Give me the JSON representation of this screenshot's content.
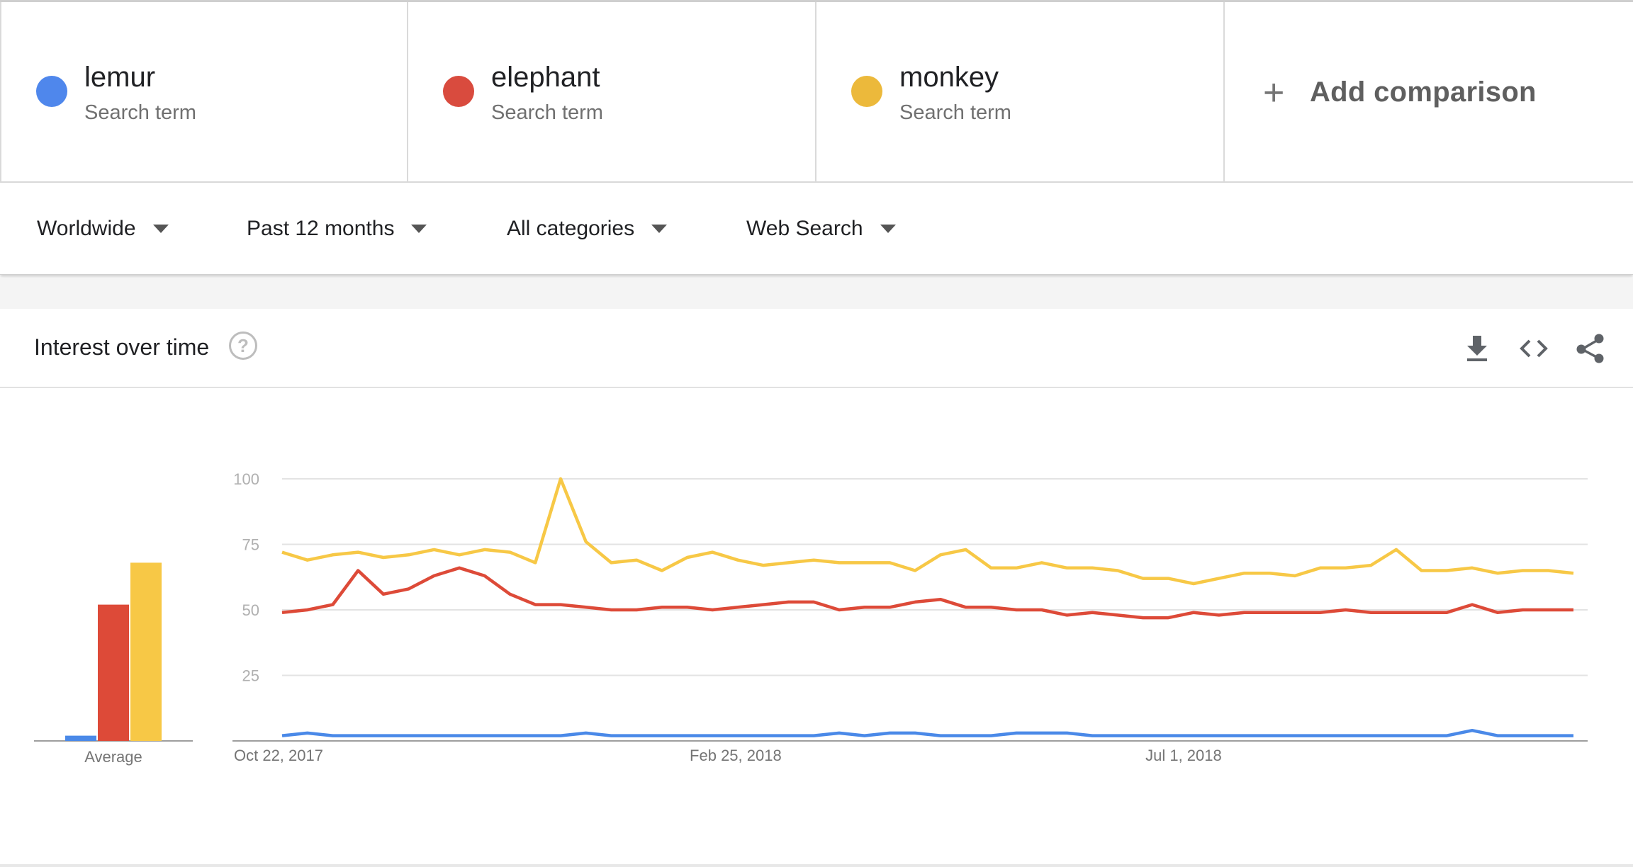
{
  "terms": [
    {
      "name": "lemur",
      "subtitle": "Search term",
      "color": "#4f87ec"
    },
    {
      "name": "elephant",
      "subtitle": "Search term",
      "color": "#d94b3e"
    },
    {
      "name": "monkey",
      "subtitle": "Search term",
      "color": "#ecb93b"
    }
  ],
  "add_comparison": {
    "label": "Add comparison",
    "icon": "plus-icon"
  },
  "filters": {
    "region": "Worldwide",
    "time": "Past 12 months",
    "category": "All categories",
    "search_type": "Web Search"
  },
  "card": {
    "title": "Interest over time",
    "help_icon": "help-circle-icon",
    "tools": [
      "download-icon",
      "embed-code-icon",
      "share-icon"
    ]
  },
  "chart_data": {
    "type": "line",
    "y_ticks": [
      "100",
      "75",
      "50",
      "25"
    ],
    "ylim": [
      0,
      100
    ],
    "x_tick_labels": [
      {
        "label": "Oct 22, 2017",
        "index": 0
      },
      {
        "label": "Feb 25, 2018",
        "index": 18
      },
      {
        "label": "Jul 1, 2018",
        "index": 36
      }
    ],
    "grid": true,
    "series": [
      {
        "name": "lemur",
        "color": "#4a89e8",
        "values": [
          2,
          3,
          2,
          2,
          2,
          2,
          2,
          2,
          2,
          2,
          2,
          2,
          3,
          2,
          2,
          2,
          2,
          2,
          2,
          2,
          2,
          2,
          3,
          2,
          3,
          3,
          2,
          2,
          2,
          3,
          3,
          3,
          2,
          2,
          2,
          2,
          2,
          2,
          2,
          2,
          2,
          2,
          2,
          2,
          2,
          2,
          2,
          4,
          2,
          2,
          2,
          2
        ]
      },
      {
        "name": "elephant",
        "color": "#dd4a38",
        "values": [
          49,
          50,
          52,
          65,
          56,
          58,
          63,
          66,
          63,
          56,
          52,
          52,
          51,
          50,
          50,
          51,
          51,
          50,
          51,
          52,
          53,
          53,
          50,
          51,
          51,
          53,
          54,
          51,
          51,
          50,
          50,
          48,
          49,
          48,
          47,
          47,
          49,
          48,
          49,
          49,
          49,
          49,
          50,
          49,
          49,
          49,
          49,
          52,
          49,
          50,
          50,
          50
        ]
      },
      {
        "name": "monkey",
        "color": "#f7c846",
        "values": [
          72,
          69,
          71,
          72,
          70,
          71,
          73,
          71,
          73,
          72,
          68,
          100,
          76,
          68,
          69,
          65,
          70,
          72,
          69,
          67,
          68,
          69,
          68,
          68,
          68,
          65,
          71,
          73,
          66,
          66,
          68,
          66,
          66,
          65,
          62,
          62,
          60,
          62,
          64,
          64,
          63,
          66,
          66,
          67,
          73,
          65,
          65,
          66,
          64,
          65,
          65,
          64
        ]
      }
    ],
    "average": {
      "label": "Average",
      "values": [
        {
          "name": "lemur",
          "value": 2
        },
        {
          "name": "elephant",
          "value": 52
        },
        {
          "name": "monkey",
          "value": 68
        }
      ]
    }
  }
}
